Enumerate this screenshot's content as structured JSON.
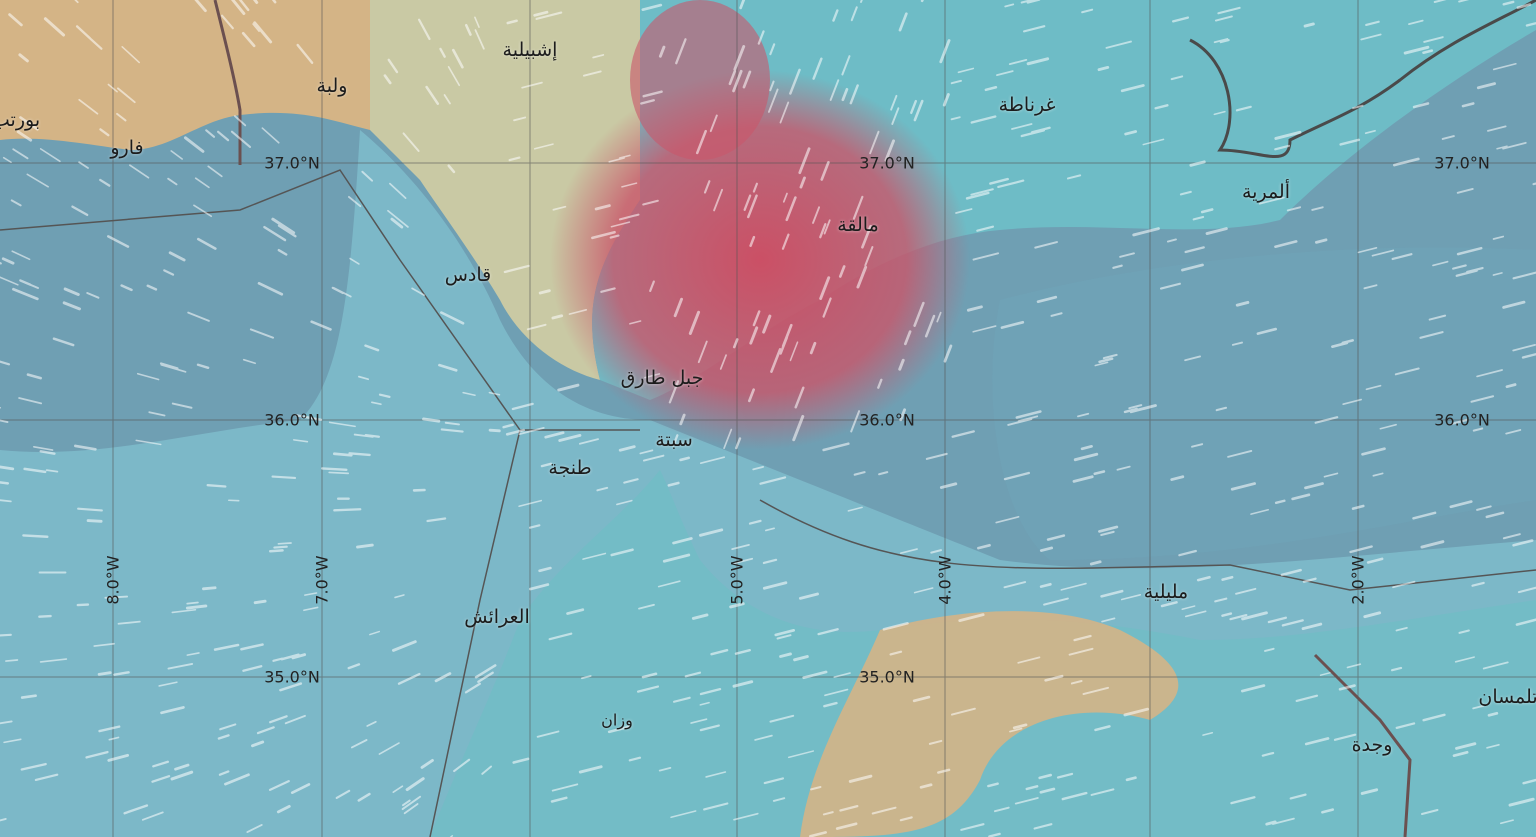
{
  "map": {
    "colors": {
      "sea_deep": "#6f9fb3",
      "sea_mid": "#7fb6c4",
      "teal": "#5fb7c6",
      "land": "#d4b486",
      "land_plain": "#c9c9a4",
      "storm": "#c9566a",
      "grid": "#555555",
      "border": "#6b5050"
    },
    "cities": [
      {
        "name": "إشبيلية"
      },
      {
        "name": "ولبة"
      },
      {
        "name": "بورتب"
      },
      {
        "name": "فارو"
      },
      {
        "name": "غرناطة"
      },
      {
        "name": "ألمرية"
      },
      {
        "name": "مالقة"
      },
      {
        "name": "قادس"
      },
      {
        "name": "جبل طارق"
      },
      {
        "name": "سبتة"
      },
      {
        "name": "طنجة"
      },
      {
        "name": "العرائش"
      },
      {
        "name": "مليلية"
      },
      {
        "name": "وزان"
      },
      {
        "name": "تلمسان"
      },
      {
        "name": "وجدة"
      }
    ],
    "lat_labels": [
      "37.0°N",
      "36.0°N",
      "35.0°N"
    ],
    "lon_labels": [
      "8.0°W",
      "7.0°W",
      "5.0°W",
      "4.0°W",
      "2.0°W"
    ],
    "layer": "wind-streamlines"
  }
}
